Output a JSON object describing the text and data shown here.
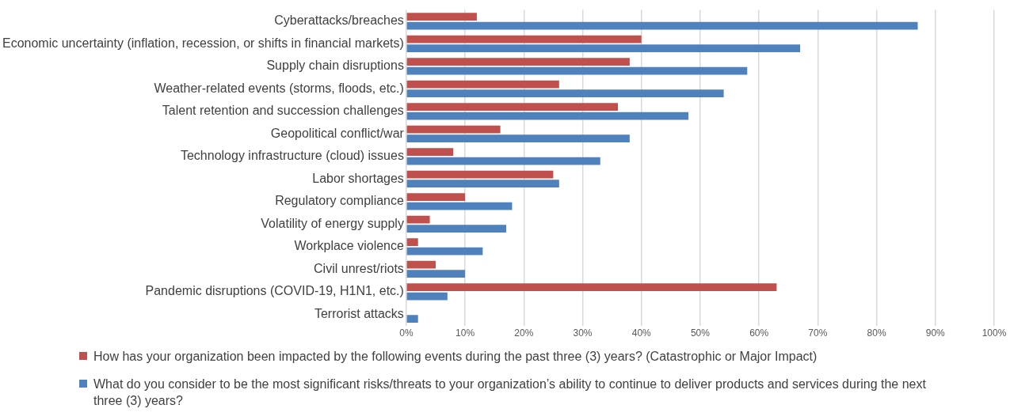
{
  "chart_data": {
    "type": "bar",
    "orientation": "horizontal",
    "categories": [
      "Cyberattacks/breaches",
      "Economic uncertainty (inflation, recession, or shifts in financial markets)",
      "Supply chain disruptions",
      "Weather-related events (storms, floods, etc.)",
      "Talent retention and succession challenges",
      "Geopolitical conflict/war",
      "Technology infrastructure (cloud) issues",
      "Labor shortages",
      "Regulatory compliance",
      "Volatility of energy supply",
      "Workplace violence",
      "Civil unrest/riots",
      "Pandemic disruptions (COVID-19, H1N1, etc.)",
      "Terrorist attacks"
    ],
    "series": [
      {
        "name": "How has your organization been impacted by the following events during the past three (3) years? (Catastrophic or Major Impact)",
        "color": "#c0504d",
        "values": [
          12,
          40,
          38,
          26,
          36,
          16,
          8,
          25,
          10,
          4,
          2,
          5,
          63,
          0
        ]
      },
      {
        "name": "What do you consider to be the most significant risks/threats to your organization’s ability to continue to deliver products and services during the next three (3) years?",
        "color": "#4f81bd",
        "values": [
          87,
          67,
          58,
          54,
          48,
          38,
          33,
          26,
          18,
          17,
          13,
          10,
          7,
          2
        ]
      }
    ],
    "xlim": [
      0,
      100
    ],
    "xticks": [
      {
        "value": 0,
        "label": "0%"
      },
      {
        "value": 10,
        "label": "10%"
      },
      {
        "value": 20,
        "label": "20%"
      },
      {
        "value": 30,
        "label": "30%"
      },
      {
        "value": 40,
        "label": "40%"
      },
      {
        "value": 50,
        "label": "50%"
      },
      {
        "value": 60,
        "label": "60%"
      },
      {
        "value": 70,
        "label": "70%"
      },
      {
        "value": 80,
        "label": "80%"
      },
      {
        "value": 90,
        "label": "90%"
      },
      {
        "value": 100,
        "label": "100%"
      }
    ],
    "grid": "x",
    "legend": "bottom"
  }
}
